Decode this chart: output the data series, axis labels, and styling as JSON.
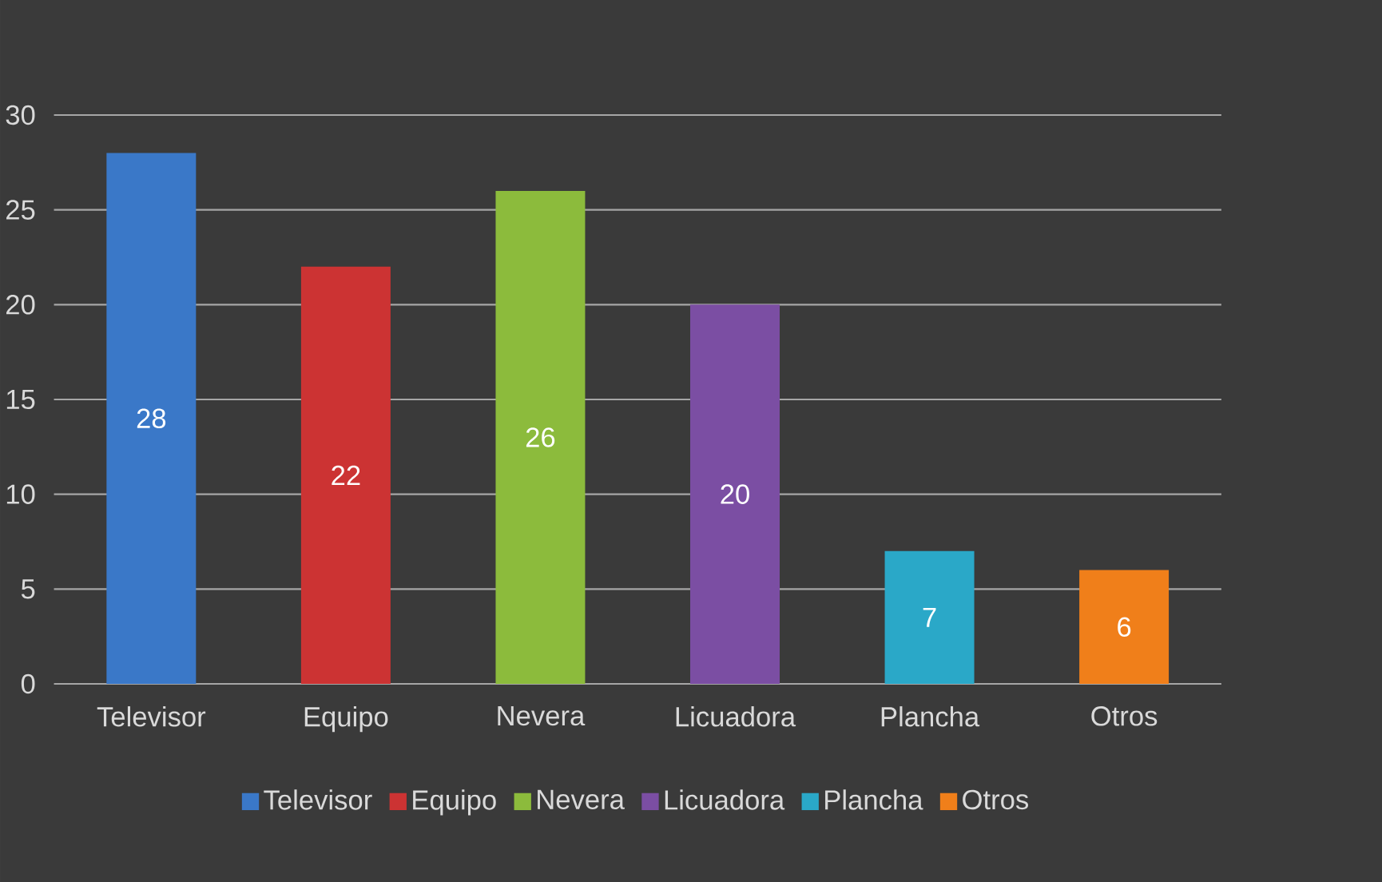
{
  "chart_data": {
    "type": "bar",
    "categories": [
      "Televisor",
      "Equipo",
      "Nevera",
      "Licuadora",
      "Plancha",
      "Otros"
    ],
    "series": [
      {
        "name": "Televisor",
        "color": "#3a78c8",
        "values": [
          28,
          null,
          null,
          null,
          null,
          null
        ]
      },
      {
        "name": "Equipo",
        "color": "#cc3333",
        "values": [
          null,
          22,
          null,
          null,
          null,
          null
        ]
      },
      {
        "name": "Nevera",
        "color": "#8cbb3c",
        "values": [
          null,
          null,
          26,
          null,
          null,
          null
        ]
      },
      {
        "name": "Licuadora",
        "color": "#7b4ea3",
        "values": [
          null,
          null,
          null,
          20,
          null,
          null
        ]
      },
      {
        "name": "Plancha",
        "color": "#2aa8c8",
        "values": [
          null,
          null,
          null,
          null,
          7,
          null
        ]
      },
      {
        "name": "Otros",
        "color": "#f07f1a",
        "values": [
          null,
          null,
          null,
          null,
          null,
          6
        ]
      }
    ],
    "ylim": [
      0,
      30
    ],
    "yticks": [
      0,
      5,
      10,
      15,
      20,
      25,
      30
    ],
    "grid": "y",
    "legend": "bottom",
    "data_labels": true
  }
}
